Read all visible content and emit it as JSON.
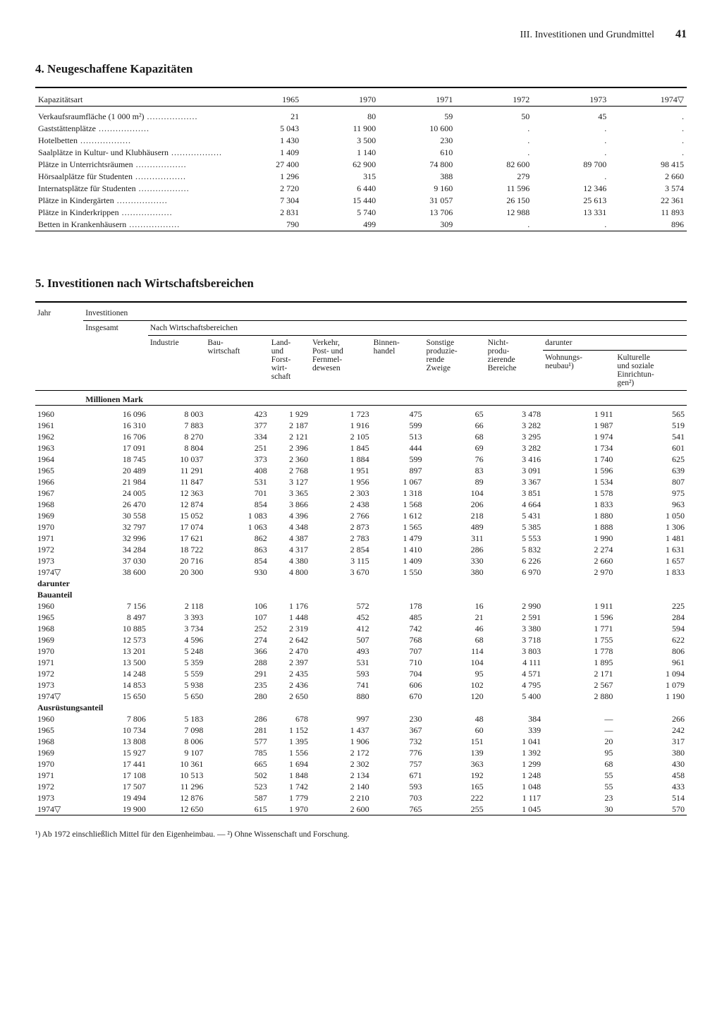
{
  "header": {
    "chapter": "III. Investitionen und Grundmittel",
    "page": "41"
  },
  "section4": {
    "title": "4. Neugeschaffene Kapazitäten",
    "col_label": "Kapazitätsart",
    "years": [
      "1965",
      "1970",
      "1971",
      "1972",
      "1973",
      "1974▽"
    ],
    "rows": [
      {
        "label": "Verkaufsraumfläche (1 000 m²)",
        "v": [
          "21",
          "80",
          "59",
          "50",
          "45",
          "."
        ]
      },
      {
        "label": "Gaststättenplätze",
        "v": [
          "5 043",
          "11 900",
          "10 600",
          ".",
          ".",
          "."
        ]
      },
      {
        "label": "Hotelbetten",
        "v": [
          "1 430",
          "3 500",
          "230",
          ".",
          ".",
          "."
        ]
      },
      {
        "label": "Saalplätze in Kultur- und Klubhäusern",
        "v": [
          "1 409",
          "1 140",
          "610",
          ".",
          ".",
          "."
        ]
      },
      {
        "label": "Plätze in Unterrichtsräumen",
        "v": [
          "27 400",
          "62 900",
          "74 800",
          "82 600",
          "89 700",
          "98 415"
        ]
      },
      {
        "label": "Hörsaalplätze für Studenten",
        "v": [
          "1 296",
          "315",
          "388",
          "279",
          ".",
          "2 660"
        ]
      },
      {
        "label": "Internatsplätze für Studenten",
        "v": [
          "2 720",
          "6 440",
          "9 160",
          "11 596",
          "12 346",
          "3 574"
        ]
      },
      {
        "label": "Plätze in Kindergärten",
        "v": [
          "7 304",
          "15 440",
          "31 057",
          "26 150",
          "25 613",
          "22 361"
        ]
      },
      {
        "label": "Plätze in Kinderkrippen",
        "v": [
          "2 831",
          "5 740",
          "13 706",
          "12 988",
          "13 331",
          "11 893"
        ]
      },
      {
        "label": "Betten in Krankenhäusern",
        "v": [
          "790",
          "499",
          "309",
          ".",
          ".",
          "896"
        ]
      }
    ]
  },
  "section5": {
    "title": "5. Investitionen nach Wirtschaftsbereichen",
    "head": {
      "jahr": "Jahr",
      "invest": "Investitionen",
      "insgesamt": "Insgesamt",
      "nach": "Nach Wirtschaftsbereichen",
      "cols": [
        "Industrie",
        "Bau-\nwirtschaft",
        "Land-\nund\nForst-\nwirt-\nschaft",
        "Verkehr,\nPost- und\nFernmel-\ndewesen",
        "Binnen-\nhandel",
        "Sonstige\nproduzie-\nrende\nZweige",
        "Nicht-\nprodu-\nzierende\nBereiche"
      ],
      "darunter": "darunter",
      "sub": [
        "Wohnungs-\nneubau¹)",
        "Kulturelle\nund soziale\nEinrichtun-\ngen²)"
      ]
    },
    "unit": "Millionen Mark",
    "main": [
      [
        "1960",
        "16 096",
        "8 003",
        "423",
        "1 929",
        "1 723",
        "475",
        "65",
        "3 478",
        "1 911",
        "565"
      ],
      [
        "1961",
        "16 310",
        "7 883",
        "377",
        "2 187",
        "1 916",
        "599",
        "66",
        "3 282",
        "1 987",
        "519"
      ],
      [
        "1962",
        "16 706",
        "8 270",
        "334",
        "2 121",
        "2 105",
        "513",
        "68",
        "3 295",
        "1 974",
        "541"
      ],
      [
        "1963",
        "17 091",
        "8 804",
        "251",
        "2 396",
        "1 845",
        "444",
        "69",
        "3 282",
        "1 734",
        "601"
      ],
      [
        "1964",
        "18 745",
        "10 037",
        "373",
        "2 360",
        "1 884",
        "599",
        "76",
        "3 416",
        "1 740",
        "625"
      ],
      [
        "1965",
        "20 489",
        "11 291",
        "408",
        "2 768",
        "1 951",
        "897",
        "83",
        "3 091",
        "1 596",
        "639"
      ],
      [
        "1966",
        "21 984",
        "11 847",
        "531",
        "3 127",
        "1 956",
        "1 067",
        "89",
        "3 367",
        "1 534",
        "807"
      ],
      [
        "1967",
        "24 005",
        "12 363",
        "701",
        "3 365",
        "2 303",
        "1 318",
        "104",
        "3 851",
        "1 578",
        "975"
      ],
      [
        "1968",
        "26 470",
        "12 874",
        "854",
        "3 866",
        "2 438",
        "1 568",
        "206",
        "4 664",
        "1 833",
        "963"
      ],
      [
        "1969",
        "30 558",
        "15 052",
        "1 083",
        "4 396",
        "2 766",
        "1 612",
        "218",
        "5 431",
        "1 880",
        "1 050"
      ],
      [
        "1970",
        "32 797",
        "17 074",
        "1 063",
        "4 348",
        "2 873",
        "1 565",
        "489",
        "5 385",
        "1 888",
        "1 306"
      ],
      [
        "1971",
        "32 996",
        "17 621",
        "862",
        "4 387",
        "2 783",
        "1 479",
        "311",
        "5 553",
        "1 990",
        "1 481"
      ],
      [
        "1972",
        "34 284",
        "18 722",
        "863",
        "4 317",
        "2 854",
        "1 410",
        "286",
        "5 832",
        "2 274",
        "1 631"
      ],
      [
        "1973",
        "37 030",
        "20 716",
        "854",
        "4 380",
        "3 115",
        "1 409",
        "330",
        "6 226",
        "2 660",
        "1 657"
      ],
      [
        "1974▽",
        "38 600",
        "20 300",
        "930",
        "4 800",
        "3 670",
        "1 550",
        "380",
        "6 970",
        "2 970",
        "1 833"
      ]
    ],
    "darunter_label": "darunter",
    "bau_label": "Bauanteil",
    "bau": [
      [
        "1960",
        "7 156",
        "2 118",
        "106",
        "1 176",
        "572",
        "178",
        "16",
        "2 990",
        "1 911",
        "225"
      ],
      [
        "1965",
        "8 497",
        "3 393",
        "107",
        "1 448",
        "452",
        "485",
        "21",
        "2 591",
        "1 596",
        "284"
      ],
      [
        "1968",
        "10 885",
        "3 734",
        "252",
        "2 319",
        "412",
        "742",
        "46",
        "3 380",
        "1 771",
        "594"
      ],
      [
        "1969",
        "12 573",
        "4 596",
        "274",
        "2 642",
        "507",
        "768",
        "68",
        "3 718",
        "1 755",
        "622"
      ],
      [
        "1970",
        "13 201",
        "5 248",
        "366",
        "2 470",
        "493",
        "707",
        "114",
        "3 803",
        "1 778",
        "806"
      ],
      [
        "1971",
        "13 500",
        "5 359",
        "288",
        "2 397",
        "531",
        "710",
        "104",
        "4 111",
        "1 895",
        "961"
      ],
      [
        "1972",
        "14 248",
        "5 559",
        "291",
        "2 435",
        "593",
        "704",
        "95",
        "4 571",
        "2 171",
        "1 094"
      ],
      [
        "1973",
        "14 853",
        "5 938",
        "235",
        "2 436",
        "741",
        "606",
        "102",
        "4 795",
        "2 567",
        "1 079"
      ],
      [
        "1974▽",
        "15 650",
        "5 650",
        "280",
        "2 650",
        "880",
        "670",
        "120",
        "5 400",
        "2 880",
        "1 190"
      ]
    ],
    "aus_label": "Ausrüstungsanteil",
    "aus": [
      [
        "1960",
        "7 806",
        "5 183",
        "286",
        "678",
        "997",
        "230",
        "48",
        "384",
        "—",
        "266"
      ],
      [
        "1965",
        "10 734",
        "7 098",
        "281",
        "1 152",
        "1 437",
        "367",
        "60",
        "339",
        "—",
        "242"
      ],
      [
        "1968",
        "13 808",
        "8 006",
        "577",
        "1 395",
        "1 906",
        "732",
        "151",
        "1 041",
        "20",
        "317"
      ],
      [
        "1969",
        "15 927",
        "9 107",
        "785",
        "1 556",
        "2 172",
        "776",
        "139",
        "1 392",
        "95",
        "380"
      ],
      [
        "1970",
        "17 441",
        "10 361",
        "665",
        "1 694",
        "2 302",
        "757",
        "363",
        "1 299",
        "68",
        "430"
      ],
      [
        "1971",
        "17 108",
        "10 513",
        "502",
        "1 848",
        "2 134",
        "671",
        "192",
        "1 248",
        "55",
        "458"
      ],
      [
        "1972",
        "17 507",
        "11 296",
        "523",
        "1 742",
        "2 140",
        "593",
        "165",
        "1 048",
        "55",
        "433"
      ],
      [
        "1973",
        "19 494",
        "12 876",
        "587",
        "1 779",
        "2 210",
        "703",
        "222",
        "1 117",
        "23",
        "514"
      ],
      [
        "1974▽",
        "19 900",
        "12 650",
        "615",
        "1 970",
        "2 600",
        "765",
        "255",
        "1 045",
        "30",
        "570"
      ]
    ]
  },
  "footnote": "¹) Ab 1972 einschließlich Mittel für den Eigenheimbau. — ²) Ohne Wissenschaft und Forschung."
}
